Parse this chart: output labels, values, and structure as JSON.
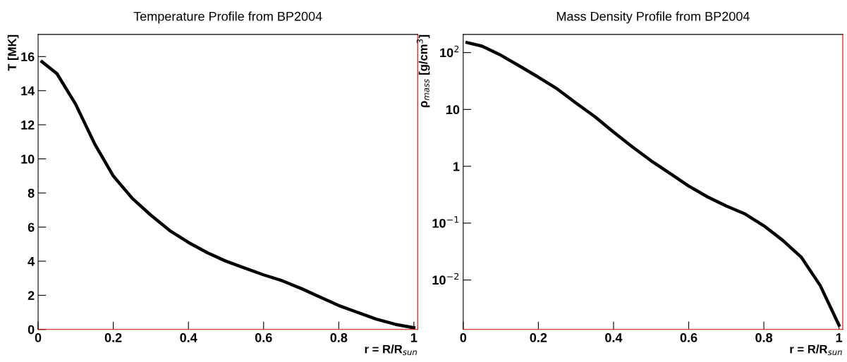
{
  "chart_data": [
    {
      "type": "line",
      "title": "Temperature Profile from BP2004",
      "xlabel": "r = R/R$_{sun}$",
      "ylabel": "T [MK]",
      "x": [
        0.01,
        0.05,
        0.1,
        0.15,
        0.2,
        0.25,
        0.3,
        0.35,
        0.4,
        0.45,
        0.5,
        0.55,
        0.6,
        0.65,
        0.7,
        0.75,
        0.8,
        0.85,
        0.9,
        0.95,
        1.0
      ],
      "series": [
        {
          "color": "#000000",
          "values": [
            15.7,
            15.0,
            13.2,
            10.9,
            9.0,
            7.7,
            6.7,
            5.8,
            5.1,
            4.5,
            4.0,
            3.6,
            3.2,
            2.85,
            2.4,
            1.9,
            1.4,
            1.0,
            0.6,
            0.3,
            0.1
          ]
        }
      ],
      "xlim": [
        0,
        1.01
      ],
      "ylim": [
        0,
        17.3
      ],
      "xticks": [
        0,
        0.2,
        0.4,
        0.6,
        0.8,
        1
      ],
      "yticks": [
        0,
        2,
        4,
        6,
        8,
        10,
        12,
        14,
        16
      ],
      "grid": false,
      "marker": "none",
      "line_style": "solid"
    },
    {
      "type": "line",
      "title": "Mass Density Profile from BP2004",
      "xlabel": "r = R/R$_{sun}$",
      "ylabel": "ρ$_{mass}$ [g/cm$^{3}$]",
      "log": "y",
      "x": [
        0.01,
        0.05,
        0.1,
        0.15,
        0.2,
        0.25,
        0.3,
        0.35,
        0.4,
        0.45,
        0.5,
        0.55,
        0.6,
        0.65,
        0.7,
        0.75,
        0.8,
        0.85,
        0.9,
        0.95,
        1.0
      ],
      "series": [
        {
          "color": "#000000",
          "values": [
            150,
            130,
            90,
            58,
            37,
            23,
            13,
            7.5,
            4.0,
            2.2,
            1.25,
            0.75,
            0.45,
            0.29,
            0.2,
            0.145,
            0.09,
            0.05,
            0.025,
            0.008,
            0.0016
          ]
        }
      ],
      "xlim": [
        0,
        1.01
      ],
      "ylim": [
        0.00135,
        209
      ],
      "xticks": [
        0,
        0.2,
        0.4,
        0.6,
        0.8,
        1
      ],
      "yticks": [
        {
          "value": 0.01,
          "label": "10$^{−2}$"
        },
        {
          "value": 0.1,
          "label": "10$^{−1}$"
        },
        1,
        10,
        {
          "value": 100,
          "label": "10$^{2}$"
        }
      ],
      "grid": false,
      "marker": "none",
      "line_style": "solid"
    }
  ]
}
